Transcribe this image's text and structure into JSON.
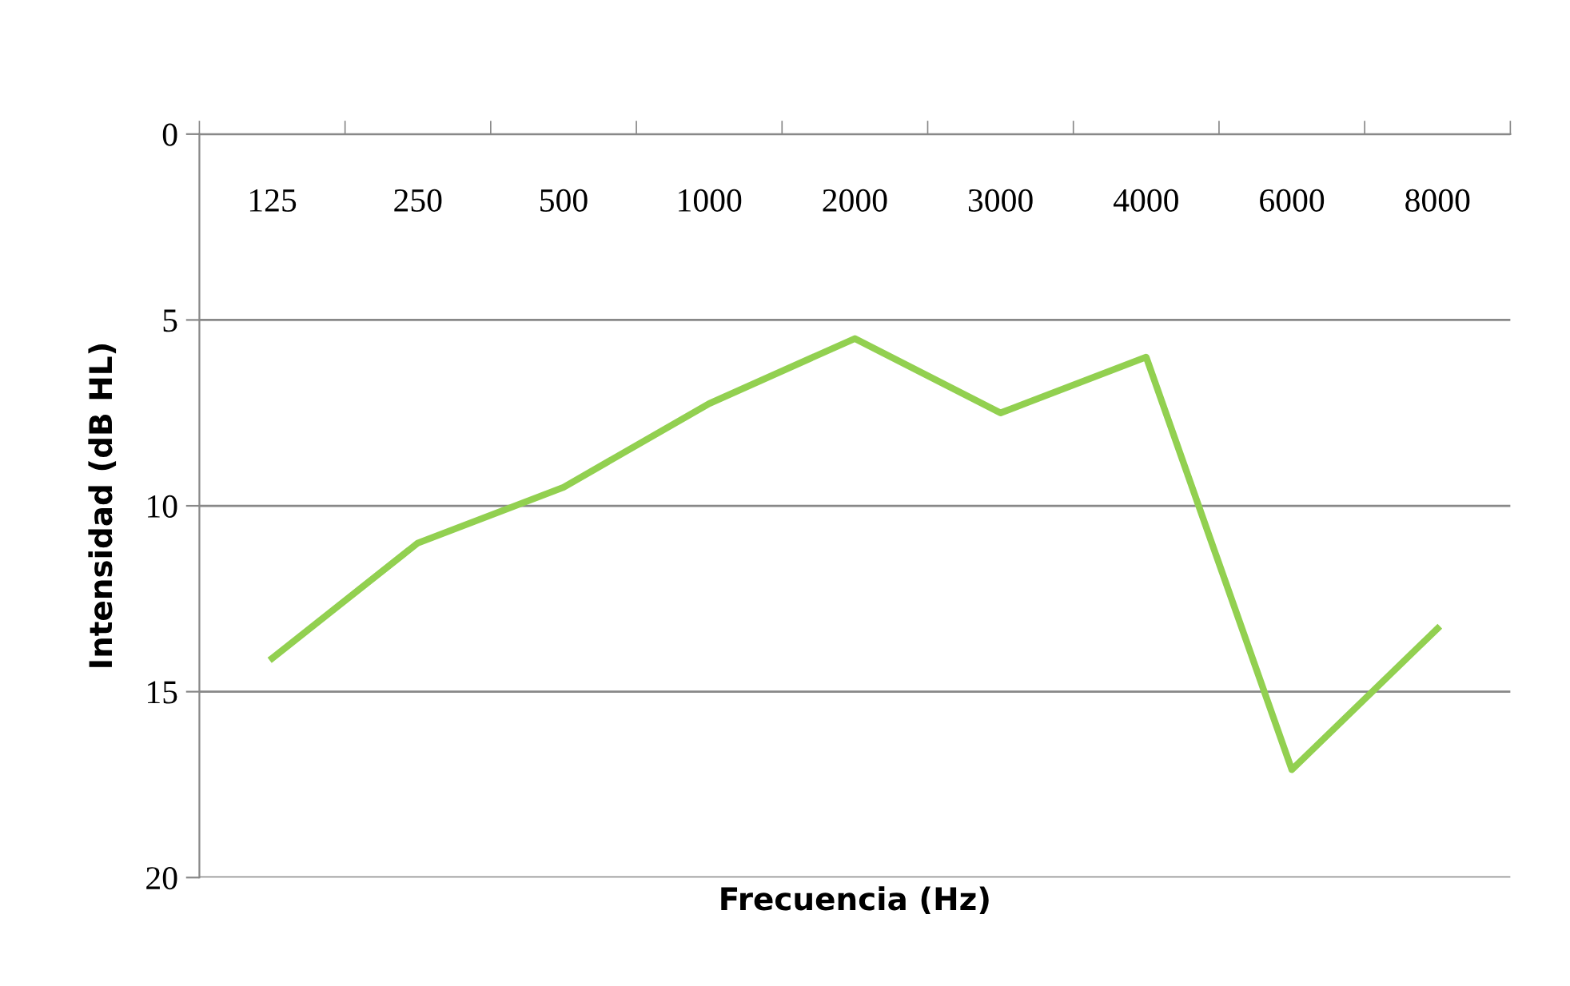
{
  "chart_data": {
    "type": "line",
    "xlabel": "Frecuencia (Hz)",
    "ylabel": "Intensidad (dB HL)",
    "categories": [
      "125",
      "250",
      "500",
      "1000",
      "2000",
      "3000",
      "4000",
      "6000",
      "8000"
    ],
    "series": [
      {
        "color": "#92d050",
        "values": [
          14.1,
          11.0,
          9.5,
          7.25,
          5.5,
          7.5,
          6.0,
          17.1,
          13.3
        ]
      }
    ],
    "ylim": [
      20,
      0
    ],
    "yticks": [
      0,
      5,
      10,
      15,
      20
    ],
    "grid": "y",
    "legend": false,
    "marker": "none",
    "line_style": "solid"
  }
}
